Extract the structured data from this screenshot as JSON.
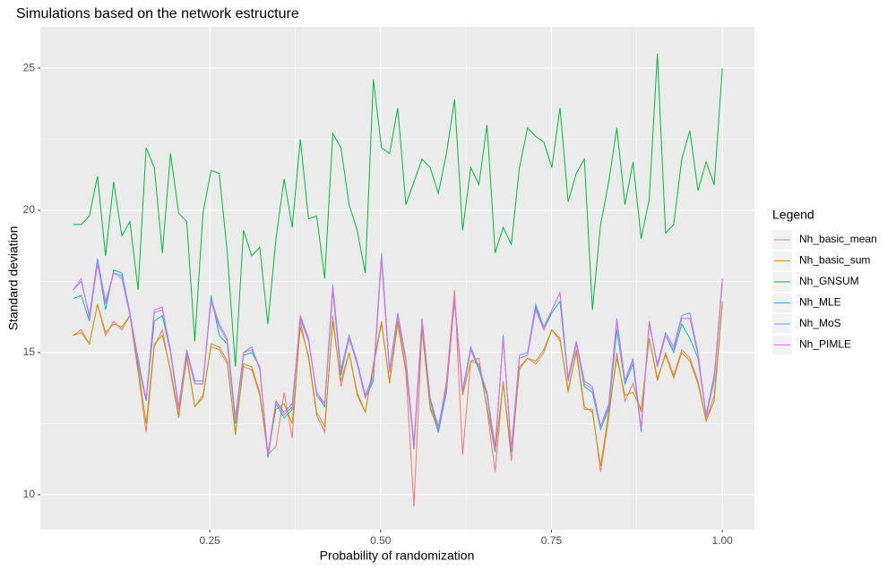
{
  "chart_data": {
    "type": "line",
    "title": "Simulations based on the network estructure",
    "x_label": "Probability of randomization",
    "y_label": "Standard deviation",
    "legend_title": "Legend",
    "legend_position": "right",
    "grid": true,
    "xlim": [
      0.002,
      1.047
    ],
    "ylim": [
      8.77,
      26.45
    ],
    "xticks": [
      0.25,
      {
        "value": 0.5,
        "label": "0.50"
      },
      0.75,
      {
        "value": 1.0,
        "label": "1.00"
      }
    ],
    "yticks": [
      10,
      15,
      20,
      25
    ],
    "x": [
      0.05,
      0.0619,
      0.0738,
      0.0856,
      0.0975,
      0.1094,
      0.1213,
      0.1331,
      0.145,
      0.1569,
      0.1688,
      0.1806,
      0.1925,
      0.2044,
      0.2163,
      0.2281,
      0.24,
      0.2519,
      0.2638,
      0.2756,
      0.2875,
      0.2994,
      0.3113,
      0.3231,
      0.335,
      0.3469,
      0.3588,
      0.3706,
      0.3825,
      0.3944,
      0.4063,
      0.4181,
      0.43,
      0.4419,
      0.4538,
      0.4656,
      0.4775,
      0.4894,
      0.5013,
      0.5131,
      0.525,
      0.5369,
      0.5488,
      0.5606,
      0.5725,
      0.5844,
      0.5963,
      0.6081,
      0.62,
      0.6319,
      0.6438,
      0.6556,
      0.6675,
      0.6794,
      0.6913,
      0.7031,
      0.715,
      0.7269,
      0.7388,
      0.7506,
      0.7625,
      0.7744,
      0.7863,
      0.7981,
      0.81,
      0.8219,
      0.8338,
      0.8456,
      0.8575,
      0.8694,
      0.8813,
      0.8931,
      0.905,
      0.9169,
      0.9288,
      0.9406,
      0.9525,
      0.9644,
      0.9763,
      0.9881,
      1.0
    ],
    "series": [
      {
        "name": "Nh_basic_mean",
        "color": "#F8766D",
        "values": [
          15.6,
          15.8,
          15.3,
          16.7,
          15.6,
          16.1,
          15.8,
          16.3,
          14.3,
          12.2,
          15.2,
          15.8,
          14.3,
          12.7,
          14.9,
          13.1,
          13.5,
          15.2,
          15.1,
          14.6,
          12.2,
          14.5,
          14.4,
          13.5,
          11.4,
          11.7,
          13.6,
          12.0,
          16.1,
          14.8,
          12.8,
          12.2,
          16.3,
          13.8,
          15.0,
          13.5,
          12.9,
          14.5,
          16.0,
          14.0,
          16.0,
          14.3,
          9.6,
          15.9,
          13.0,
          12.3,
          14.0,
          17.2,
          11.4,
          14.7,
          14.8,
          13.0,
          10.8,
          14.0,
          11.2,
          14.5,
          14.8,
          14.6,
          15.0,
          15.8,
          15.4,
          13.7,
          15.0,
          13.0,
          13.0,
          10.8,
          12.7,
          15.0,
          13.3,
          13.9,
          12.9,
          15.5,
          14.0,
          15.0,
          14.2,
          15.1,
          14.8,
          14.0,
          12.6,
          13.5,
          16.8
        ]
      },
      {
        "name": "Nh_basic_sum",
        "color": "#B79F00",
        "values": [
          15.6,
          15.7,
          15.3,
          16.7,
          15.7,
          16.0,
          15.9,
          16.3,
          14.5,
          12.5,
          15.3,
          15.6,
          14.4,
          12.8,
          14.8,
          13.1,
          13.4,
          15.3,
          15.2,
          14.7,
          12.1,
          14.6,
          14.5,
          13.6,
          11.5,
          13.0,
          13.2,
          12.5,
          15.9,
          14.9,
          12.9,
          12.4,
          16.1,
          14.0,
          15.0,
          13.6,
          12.9,
          14.6,
          16.1,
          13.9,
          16.1,
          14.4,
          11.8,
          15.8,
          13.1,
          12.2,
          13.9,
          16.8,
          13.5,
          14.7,
          14.6,
          13.1,
          11.5,
          13.9,
          11.5,
          14.4,
          14.8,
          14.7,
          15.1,
          15.8,
          15.5,
          13.6,
          15.1,
          13.1,
          12.9,
          11.0,
          12.9,
          14.8,
          13.5,
          13.6,
          13.0,
          15.5,
          14.1,
          14.9,
          14.1,
          15.0,
          14.7,
          13.9,
          12.6,
          13.3,
          16.7
        ]
      },
      {
        "name": "Nh_GNSUM",
        "color": "#00BA38",
        "values": [
          19.5,
          19.5,
          19.8,
          21.2,
          18.4,
          21.0,
          19.1,
          19.6,
          17.2,
          22.2,
          21.5,
          18.5,
          22.0,
          19.9,
          19.6,
          15.4,
          19.9,
          21.4,
          21.3,
          18.5,
          14.5,
          19.3,
          18.4,
          18.7,
          16.0,
          19.0,
          21.1,
          19.4,
          22.5,
          19.7,
          19.8,
          17.6,
          22.7,
          22.2,
          20.2,
          19.3,
          17.8,
          24.6,
          22.2,
          22.0,
          23.6,
          20.2,
          21.0,
          21.8,
          21.5,
          20.6,
          22.0,
          23.9,
          19.3,
          21.5,
          20.9,
          23.0,
          18.5,
          19.4,
          18.8,
          21.5,
          22.9,
          22.6,
          22.4,
          21.5,
          23.6,
          20.3,
          21.3,
          21.8,
          16.5,
          19.5,
          21.0,
          22.9,
          20.2,
          21.7,
          19.0,
          20.4,
          25.5,
          19.2,
          19.5,
          21.8,
          22.8,
          20.7,
          21.7,
          20.9,
          25.0
        ]
      },
      {
        "name": "Nh_MLE",
        "color": "#00BFC4",
        "values": [
          16.9,
          17.0,
          16.1,
          18.2,
          16.5,
          17.9,
          17.8,
          16.4,
          14.6,
          13.3,
          16.1,
          16.3,
          15.0,
          13.0,
          15.0,
          13.9,
          13.9,
          17.0,
          15.6,
          15.3,
          12.5,
          14.9,
          15.0,
          14.5,
          11.3,
          13.2,
          12.7,
          13.0,
          16.3,
          15.5,
          13.5,
          13.1,
          17.2,
          14.2,
          15.5,
          14.6,
          13.4,
          14.0,
          18.3,
          14.3,
          16.3,
          14.7,
          11.6,
          16.1,
          13.3,
          12.2,
          13.6,
          16.9,
          13.6,
          15.1,
          14.4,
          13.5,
          11.5,
          15.6,
          11.5,
          14.8,
          14.9,
          16.6,
          15.8,
          16.4,
          16.8,
          14.0,
          15.3,
          13.8,
          13.6,
          12.3,
          13.0,
          15.8,
          13.9,
          14.6,
          12.2,
          16.1,
          14.5,
          15.6,
          15.0,
          16.0,
          15.5,
          14.8,
          12.8,
          14.2,
          17.4
        ]
      },
      {
        "name": "Nh_MoS",
        "color": "#619CFF",
        "values": [
          17.2,
          17.5,
          16.3,
          18.3,
          16.8,
          17.8,
          17.7,
          16.4,
          14.8,
          13.3,
          16.4,
          16.5,
          15.1,
          13.1,
          15.1,
          14.0,
          14.0,
          16.9,
          16.0,
          15.5,
          12.7,
          15.0,
          15.2,
          14.4,
          11.4,
          13.3,
          12.9,
          13.2,
          16.2,
          15.4,
          13.6,
          13.2,
          17.4,
          14.4,
          15.6,
          14.7,
          13.5,
          14.2,
          18.5,
          14.4,
          16.4,
          14.8,
          11.8,
          16.2,
          13.4,
          12.4,
          13.8,
          16.8,
          13.7,
          15.2,
          14.5,
          13.6,
          11.7,
          15.5,
          11.6,
          14.9,
          15.0,
          16.7,
          15.9,
          16.5,
          17.1,
          14.1,
          15.4,
          14.0,
          13.8,
          12.4,
          13.2,
          16.2,
          14.0,
          14.8,
          12.3,
          16.0,
          14.6,
          15.7,
          15.2,
          16.3,
          16.4,
          15.0,
          12.8,
          14.0,
          17.6
        ]
      },
      {
        "name": "Nh_PIMLE",
        "color": "#F564E3",
        "values": [
          17.2,
          17.6,
          16.2,
          18.1,
          16.7,
          17.8,
          17.6,
          16.3,
          14.7,
          13.4,
          16.5,
          16.6,
          15.0,
          13.0,
          15.0,
          13.9,
          13.9,
          16.8,
          15.9,
          15.4,
          12.6,
          15.0,
          15.1,
          14.5,
          11.4,
          13.3,
          12.8,
          13.1,
          16.3,
          15.5,
          13.5,
          13.2,
          17.3,
          14.3,
          15.5,
          14.6,
          13.4,
          14.1,
          18.3,
          14.3,
          16.3,
          14.7,
          11.7,
          16.1,
          13.4,
          12.3,
          13.7,
          16.9,
          13.6,
          15.1,
          14.5,
          13.6,
          11.6,
          15.5,
          11.6,
          14.8,
          14.9,
          16.5,
          15.8,
          16.5,
          17.1,
          14.0,
          15.3,
          13.9,
          13.7,
          12.4,
          13.1,
          16.1,
          14.0,
          14.7,
          12.3,
          16.1,
          14.5,
          15.6,
          15.1,
          16.2,
          16.2,
          14.9,
          12.7,
          14.1,
          17.6
        ]
      }
    ]
  }
}
